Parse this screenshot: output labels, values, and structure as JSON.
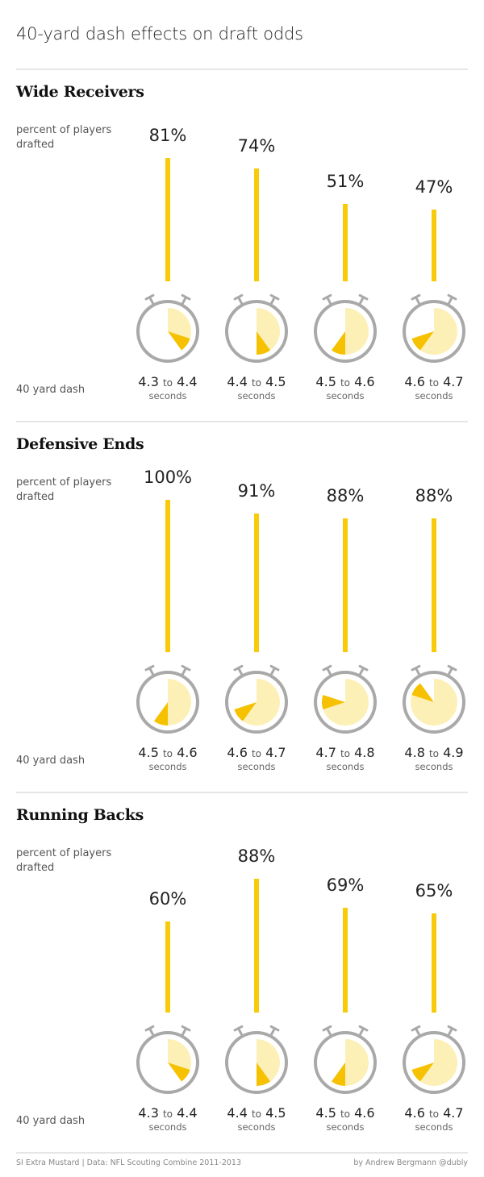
{
  "title": "40-yard dash effects on draft odds",
  "y_label": "percent of players drafted",
  "x_label": "40 yard dash",
  "to_word": "to",
  "unit": "seconds",
  "colors": {
    "bar": "#f8cb0a",
    "pie_light": "#fdf0b6",
    "pie_dark": "#f5c100",
    "watch": "#a9a9a9"
  },
  "chart_data": [
    {
      "type": "bar",
      "title": "Wide Receivers",
      "categories": [
        "4.3 to 4.4",
        "4.4 to 4.5",
        "4.5 to 4.6",
        "4.6 to 4.7"
      ],
      "ranges": [
        {
          "from": "4.3",
          "to": "4.4"
        },
        {
          "from": "4.4",
          "to": "4.5"
        },
        {
          "from": "4.5",
          "to": "4.6"
        },
        {
          "from": "4.6",
          "to": "4.7"
        }
      ],
      "values": [
        81,
        74,
        51,
        47
      ],
      "labels": [
        "81%",
        "74%",
        "51%",
        "47%"
      ],
      "ylim": [
        0,
        100
      ]
    },
    {
      "type": "bar",
      "title": "Defensive Ends",
      "categories": [
        "4.5 to 4.6",
        "4.6 to 4.7",
        "4.7 to 4.8",
        "4.8 to 4.9"
      ],
      "ranges": [
        {
          "from": "4.5",
          "to": "4.6"
        },
        {
          "from": "4.6",
          "to": "4.7"
        },
        {
          "from": "4.7",
          "to": "4.8"
        },
        {
          "from": "4.8",
          "to": "4.9"
        }
      ],
      "values": [
        100,
        91,
        88,
        88
      ],
      "labels": [
        "100%",
        "91%",
        "88%",
        "88%"
      ],
      "ylim": [
        0,
        100
      ]
    },
    {
      "type": "bar",
      "title": "Running Backs",
      "categories": [
        "4.3 to 4.4",
        "4.4 to 4.5",
        "4.5 to 4.6",
        "4.6 to 4.7"
      ],
      "ranges": [
        {
          "from": "4.3",
          "to": "4.4"
        },
        {
          "from": "4.4",
          "to": "4.5"
        },
        {
          "from": "4.5",
          "to": "4.6"
        },
        {
          "from": "4.6",
          "to": "4.7"
        }
      ],
      "values": [
        60,
        88,
        69,
        65
      ],
      "labels": [
        "60%",
        "88%",
        "69%",
        "65%"
      ],
      "ylim": [
        0,
        100
      ]
    }
  ],
  "footer": {
    "source": "SI Extra Mustard | Data: NFL Scouting Combine 2011-2013",
    "credit": "by Andrew Bergmann @dubly"
  }
}
